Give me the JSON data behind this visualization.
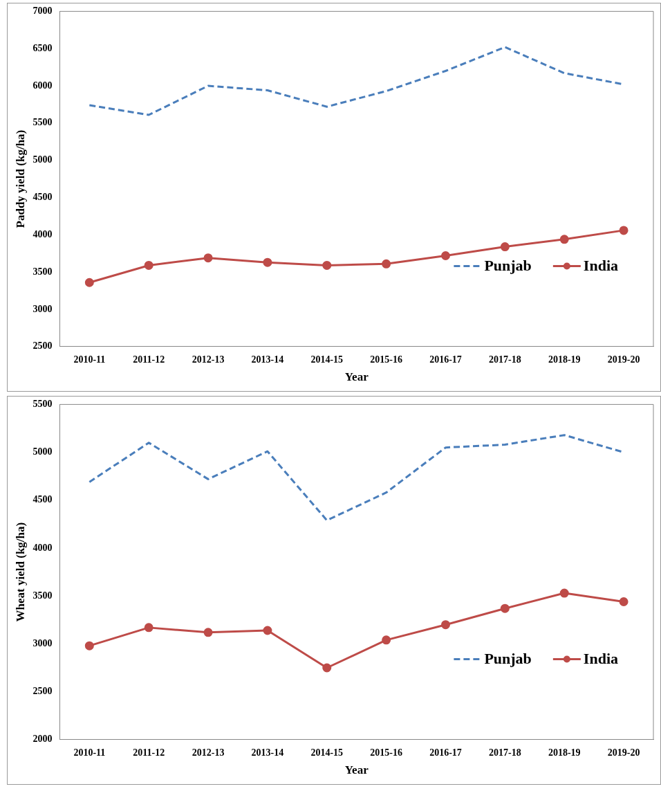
{
  "chart_data": [
    {
      "type": "line",
      "xlabel": "Year",
      "ylabel": "Paddy yield (kg/ha)",
      "categories": [
        "2010-11",
        "2011-12",
        "2012-13",
        "2013-14",
        "2014-15",
        "2015-16",
        "2016-17",
        "2017-18",
        "2018-19",
        "2019-20"
      ],
      "series": [
        {
          "name": "Punjab",
          "color": "#4a7ebb",
          "line_style": "dashed",
          "marker": "none",
          "values": [
            5740,
            5610,
            6000,
            5940,
            5720,
            5930,
            6200,
            6520,
            6170,
            6020
          ]
        },
        {
          "name": "India",
          "color": "#be4b48",
          "line_style": "solid",
          "marker": "circle",
          "values": [
            3360,
            3590,
            3690,
            3630,
            3590,
            3610,
            3720,
            3840,
            3940,
            4060
          ]
        }
      ],
      "ylim": [
        2500,
        7000
      ],
      "yticks": [
        2500,
        3000,
        3500,
        4000,
        4500,
        5000,
        5500,
        6000,
        6500,
        7000
      ],
      "grid": false,
      "legend": "bottom right"
    },
    {
      "type": "line",
      "xlabel": "Year",
      "ylabel": "Wheat yield (kg/ha)",
      "categories": [
        "2010-11",
        "2011-12",
        "2012-13",
        "2013-14",
        "2014-15",
        "2015-16",
        "2016-17",
        "2017-18",
        "2018-19",
        "2019-20"
      ],
      "series": [
        {
          "name": "Punjab",
          "color": "#4a7ebb",
          "line_style": "dashed",
          "marker": "none",
          "values": [
            4690,
            5100,
            4720,
            5010,
            4290,
            4580,
            5050,
            5080,
            5180,
            5000
          ]
        },
        {
          "name": "India",
          "color": "#be4b48",
          "line_style": "solid",
          "marker": "circle",
          "values": [
            2980,
            3170,
            3120,
            3140,
            2750,
            3040,
            3200,
            3370,
            3530,
            3440
          ]
        }
      ],
      "ylim": [
        2000,
        5500
      ],
      "yticks": [
        2000,
        2500,
        3000,
        3500,
        4000,
        4500,
        5000,
        5500
      ],
      "grid": false,
      "legend": "bottom right"
    }
  ]
}
